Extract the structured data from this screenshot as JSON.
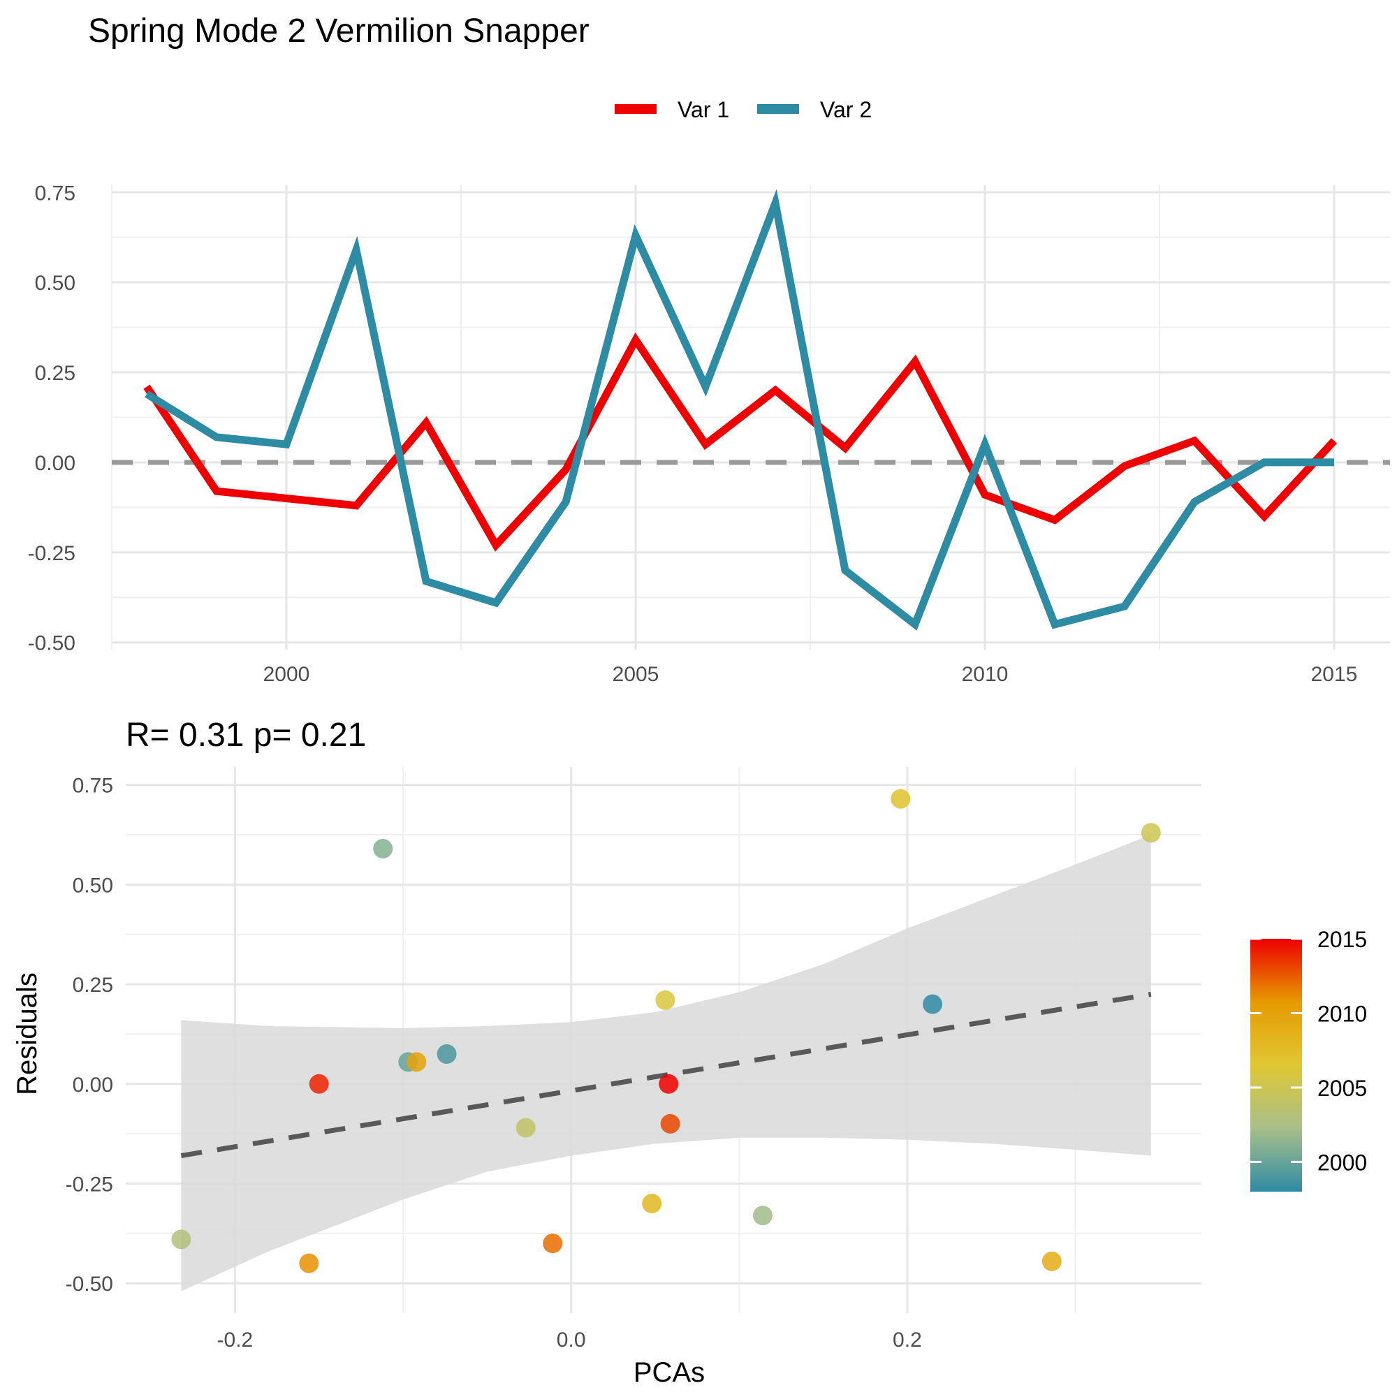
{
  "chart_data": [
    {
      "type": "line",
      "title": "Spring Mode 2 Vermilion Snapper",
      "xlabel": "",
      "ylabel": "",
      "xlim": [
        1997.5,
        2015.8
      ],
      "ylim": [
        -0.52,
        0.77
      ],
      "x_ticks": [
        2000,
        2005,
        2010,
        2015
      ],
      "y_ticks": [
        -0.5,
        -0.25,
        0.0,
        0.25,
        0.5,
        0.75
      ],
      "x_tick_labels": [
        "2000",
        "2005",
        "2010",
        "2015"
      ],
      "y_tick_labels": [
        "-0.50",
        "-0.25",
        "0.00",
        "0.25",
        "0.50",
        "0.75"
      ],
      "grid": true,
      "legend_position": "top",
      "reference_line": {
        "y": 0,
        "style": "dashed",
        "color": "#999999"
      },
      "x": [
        1998,
        1999,
        2000,
        2001,
        2002,
        2003,
        2004,
        2005,
        2006,
        2007,
        2008,
        2009,
        2010,
        2011,
        2012,
        2013,
        2014,
        2015
      ],
      "series": [
        {
          "name": "Var 1",
          "color": "#EE0000",
          "values": [
            0.21,
            -0.08,
            -0.1,
            -0.12,
            0.11,
            -0.23,
            -0.02,
            0.34,
            0.05,
            0.2,
            0.04,
            0.28,
            -0.09,
            -0.16,
            -0.01,
            0.06,
            -0.15,
            0.06
          ]
        },
        {
          "name": "Var 2",
          "color": "#2E8BA4",
          "values": [
            0.19,
            0.07,
            0.05,
            0.59,
            -0.33,
            -0.39,
            -0.11,
            0.63,
            0.21,
            0.72,
            -0.3,
            -0.45,
            0.05,
            -0.45,
            -0.4,
            -0.11,
            0.0,
            0.0
          ]
        }
      ]
    },
    {
      "type": "scatter",
      "title": "R= 0.31  p= 0.21",
      "xlabel": "PCAs",
      "ylabel": "Residuals",
      "xlim": [
        -0.265,
        0.375
      ],
      "ylim": [
        -0.575,
        0.795
      ],
      "x_ticks": [
        -0.2,
        0.0,
        0.2
      ],
      "y_ticks": [
        -0.5,
        -0.25,
        0.0,
        0.25,
        0.5,
        0.75
      ],
      "x_tick_labels": [
        "-0.2",
        "0.0",
        "0.2"
      ],
      "y_tick_labels": [
        "-0.50",
        "-0.25",
        "0.00",
        "0.25",
        "0.50",
        "0.75"
      ],
      "grid": true,
      "points": [
        {
          "x": -0.232,
          "y": -0.39,
          "year": 2003
        },
        {
          "x": -0.156,
          "y": -0.45,
          "year": 2011
        },
        {
          "x": -0.15,
          "y": 0.0,
          "year": 2014
        },
        {
          "x": -0.112,
          "y": 0.59,
          "year": 2001
        },
        {
          "x": -0.097,
          "y": 0.055,
          "year": 2000
        },
        {
          "x": -0.092,
          "y": 0.055,
          "year": 2010
        },
        {
          "x": -0.074,
          "y": 0.075,
          "year": 1999
        },
        {
          "x": -0.027,
          "y": -0.11,
          "year": 2004
        },
        {
          "x": -0.011,
          "y": -0.4,
          "year": 2012
        },
        {
          "x": 0.048,
          "y": -0.3,
          "year": 2008
        },
        {
          "x": 0.056,
          "y": 0.21,
          "year": 2006
        },
        {
          "x": 0.058,
          "y": 0.0,
          "year": 2015
        },
        {
          "x": 0.059,
          "y": -0.1,
          "year": 2013
        },
        {
          "x": 0.114,
          "y": -0.33,
          "year": 2002
        },
        {
          "x": 0.196,
          "y": 0.715,
          "year": 2007
        },
        {
          "x": 0.215,
          "y": 0.2,
          "year": 1998
        },
        {
          "x": 0.286,
          "y": -0.445,
          "year": 2009
        },
        {
          "x": 0.345,
          "y": 0.63,
          "year": 2005
        }
      ],
      "fit_line": {
        "x": [
          -0.232,
          0.345
        ],
        "y": [
          -0.18,
          0.225
        ],
        "style": "dashed",
        "color": "#595959"
      },
      "confidence_band": {
        "x": [
          -0.232,
          -0.18,
          -0.1,
          -0.05,
          0.0,
          0.05,
          0.1,
          0.15,
          0.2,
          0.25,
          0.3,
          0.345
        ],
        "upper": [
          0.16,
          0.145,
          0.14,
          0.145,
          0.155,
          0.18,
          0.23,
          0.3,
          0.39,
          0.47,
          0.55,
          0.625
        ],
        "lower": [
          -0.52,
          -0.42,
          -0.29,
          -0.22,
          -0.18,
          -0.15,
          -0.135,
          -0.135,
          -0.14,
          -0.15,
          -0.165,
          -0.18
        ]
      },
      "colorbar": {
        "label_values": [
          2000,
          2005,
          2010,
          2015
        ],
        "labels": [
          "2000",
          "2005",
          "2010",
          "2015"
        ],
        "range": [
          1998,
          2015
        ],
        "stops": [
          "#2E8BA4",
          "#A8BF8A",
          "#E0C733",
          "#E69A00",
          "#EE0000"
        ]
      }
    }
  ]
}
